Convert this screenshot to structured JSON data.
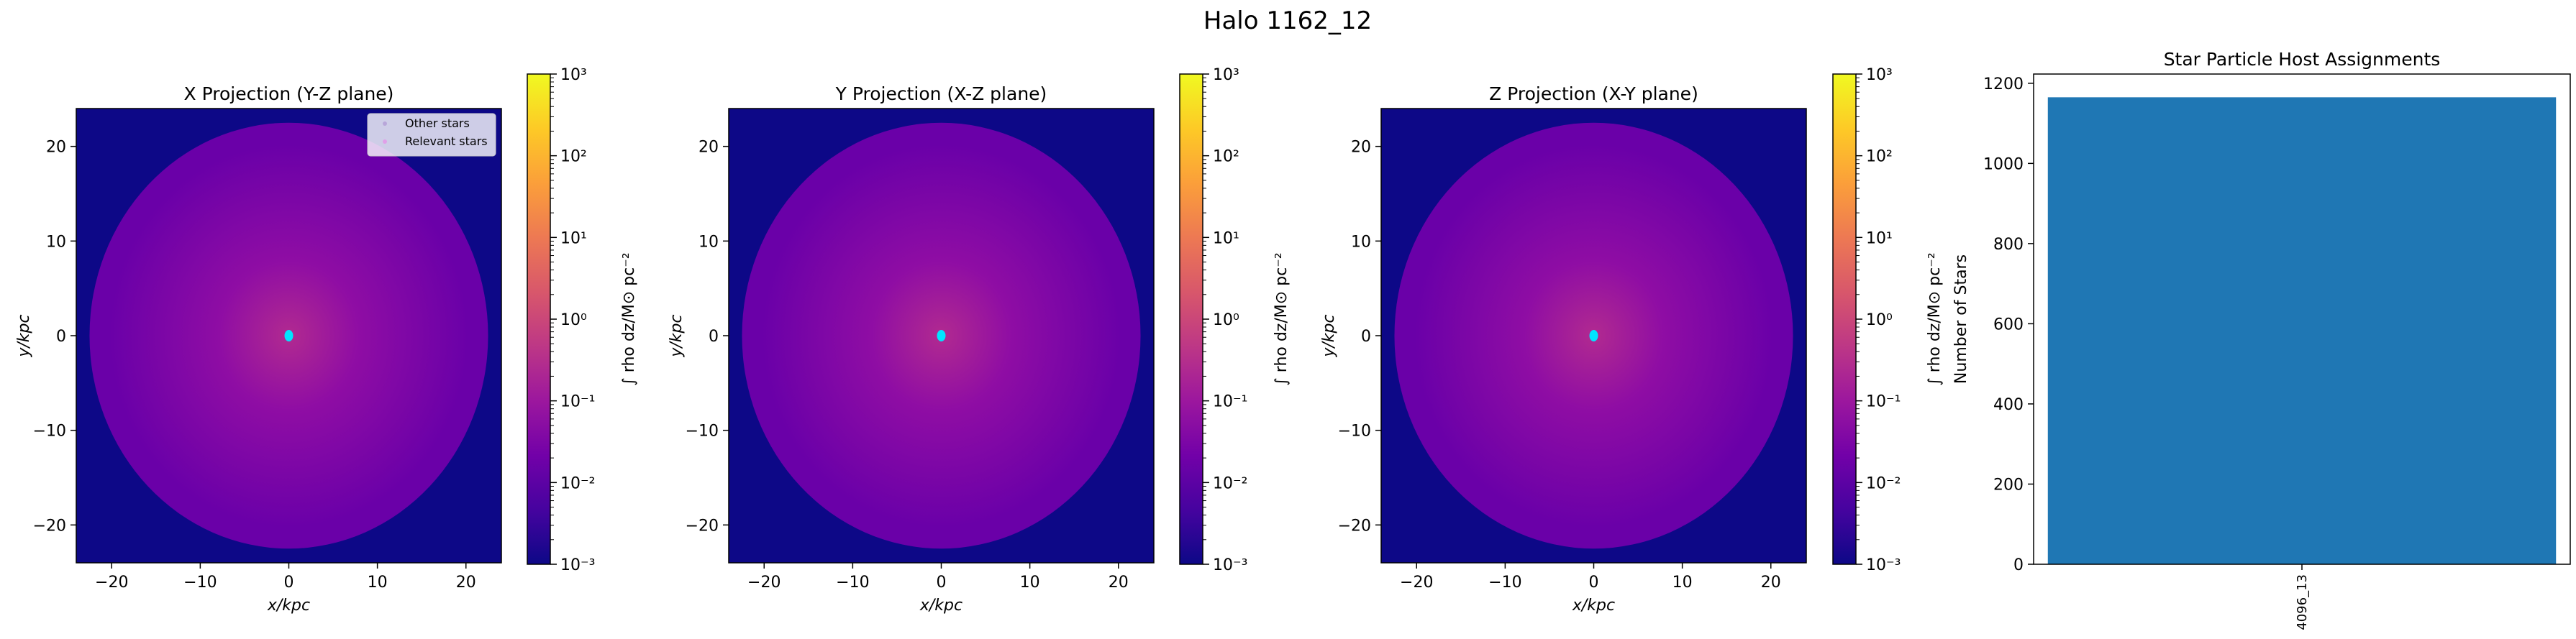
{
  "figure": {
    "suptitle": "Halo 1162_12"
  },
  "colors": {
    "background_map": "#0d0887",
    "disk_outer": "#6a00a8",
    "disk_mid": "#8f0da4",
    "disk_center": "#b12a90",
    "relevant_stars": "#00e5ff",
    "other_stars": "#c8b2e6",
    "bar": "#1f77b4",
    "colormap": [
      "#0d0887",
      "#46039f",
      "#7201a8",
      "#9c179e",
      "#bd3786",
      "#d8576b",
      "#ed7953",
      "#fb9f3a",
      "#fdca26",
      "#f0f921"
    ]
  },
  "chart_data": [
    {
      "type": "heatmap",
      "title": "X Projection (Y-Z plane)",
      "xlabel": "x/kpc",
      "ylabel": "y/kpc",
      "xlim": [
        -24,
        24
      ],
      "ylim": [
        -24,
        24
      ],
      "xticks": [
        -20,
        -10,
        0,
        10,
        20
      ],
      "yticks": [
        -20,
        -10,
        0,
        10,
        20
      ],
      "xtick_labels": [
        "−20",
        "−10",
        "0",
        "10",
        "20"
      ],
      "ytick_labels": [
        "−20",
        "−10",
        "0",
        "10",
        "20"
      ],
      "disk_radius_kpc": 22.5,
      "relevant_star_center": [
        0,
        0
      ],
      "colorbar": {
        "label": "∫ rho dz/M⊙ pc⁻²",
        "scale": "log",
        "range": [
          0.001,
          1000
        ],
        "ticks": [
          -3,
          -2,
          -1,
          0,
          1,
          2,
          3
        ],
        "tick_labels": [
          "10⁻³",
          "10⁻²",
          "10⁻¹",
          "10⁰",
          "10¹",
          "10²",
          "10³"
        ]
      },
      "legend": {
        "placement": "upper-right",
        "entries": [
          "Other stars",
          "Relevant stars"
        ]
      }
    },
    {
      "type": "heatmap",
      "title": "Y Projection (X-Z plane)",
      "xlabel": "x/kpc",
      "ylabel": "y/kpc",
      "xlim": [
        -24,
        24
      ],
      "ylim": [
        -24,
        24
      ],
      "xticks": [
        -20,
        -10,
        0,
        10,
        20
      ],
      "yticks": [
        -20,
        -10,
        0,
        10,
        20
      ],
      "xtick_labels": [
        "−20",
        "−10",
        "0",
        "10",
        "20"
      ],
      "ytick_labels": [
        "−20",
        "−10",
        "0",
        "10",
        "20"
      ],
      "disk_radius_kpc": 22.5,
      "relevant_star_center": [
        0,
        0
      ],
      "colorbar": {
        "label": "∫ rho dz/M⊙ pc⁻²",
        "scale": "log",
        "range": [
          0.001,
          1000
        ],
        "ticks": [
          -3,
          -2,
          -1,
          0,
          1,
          2,
          3
        ],
        "tick_labels": [
          "10⁻³",
          "10⁻²",
          "10⁻¹",
          "10⁰",
          "10¹",
          "10²",
          "10³"
        ]
      }
    },
    {
      "type": "heatmap",
      "title": "Z Projection (X-Y plane)",
      "xlabel": "x/kpc",
      "ylabel": "y/kpc",
      "xlim": [
        -24,
        24
      ],
      "ylim": [
        -24,
        24
      ],
      "xticks": [
        -20,
        -10,
        0,
        10,
        20
      ],
      "yticks": [
        -20,
        -10,
        0,
        10,
        20
      ],
      "xtick_labels": [
        "−20",
        "−10",
        "0",
        "10",
        "20"
      ],
      "ytick_labels": [
        "−20",
        "−10",
        "0",
        "10",
        "20"
      ],
      "disk_radius_kpc": 22.5,
      "relevant_star_center": [
        0,
        0
      ],
      "colorbar": {
        "label": "∫ rho dz/M⊙ pc⁻²",
        "scale": "log",
        "range": [
          0.001,
          1000
        ],
        "ticks": [
          -3,
          -2,
          -1,
          0,
          1,
          2,
          3
        ],
        "tick_labels": [
          "10⁻³",
          "10⁻²",
          "10⁻¹",
          "10⁰",
          "10¹",
          "10²",
          "10³"
        ]
      }
    },
    {
      "type": "bar",
      "title": "Star Particle Host Assignments",
      "xlabel": "",
      "ylabel": "Number of Stars",
      "categories": [
        "4096_13"
      ],
      "values": [
        1165
      ],
      "ylim": [
        0,
        1223
      ],
      "yticks": [
        0,
        200,
        400,
        600,
        800,
        1000,
        1200
      ],
      "ytick_labels": [
        "0",
        "200",
        "400",
        "600",
        "800",
        "1000",
        "1200"
      ]
    }
  ]
}
